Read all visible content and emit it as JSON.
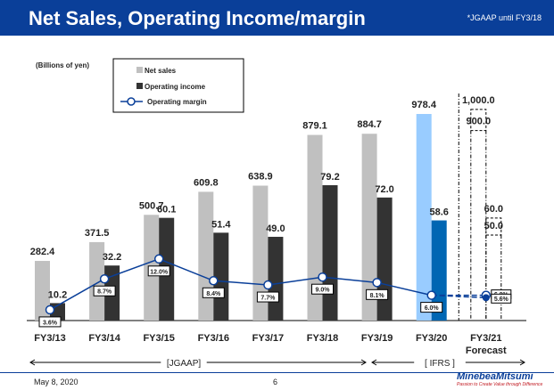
{
  "header": {
    "title": "Net Sales, Operating Income/margin",
    "note": "*JGAAP until FY3/18"
  },
  "footer": {
    "date": "May 8, 2020",
    "page": "6",
    "logo_name": "MinebeaMitsumi",
    "logo_tagline": "Passion to Create Value through Difference"
  },
  "colors": {
    "header_bg": "#0a3f99",
    "net_sales": "#c0c0c0",
    "operating_income": "#333333",
    "net_sales_fy20": "#99ccff",
    "operating_income_fy20": "#0066b3",
    "margin_line": "#0a3f99"
  },
  "chart_data": {
    "type": "bar",
    "unit_label": "(Billions of yen)",
    "categories": [
      "FY3/13",
      "FY3/14",
      "FY3/15",
      "FY3/16",
      "FY3/17",
      "FY3/18",
      "FY3/19",
      "FY3/20",
      "FY3/21"
    ],
    "forecast_label": "Forecast",
    "series": [
      {
        "name": "Net sales",
        "values": [
          282.4,
          371.5,
          500.7,
          609.8,
          638.9,
          879.1,
          884.7,
          978.4,
          null
        ],
        "labels": [
          "282.4",
          "371.5",
          "500.7",
          "609.8",
          "638.9",
          "879.1",
          "884.7",
          "978.4",
          null
        ]
      },
      {
        "name": "Operating income",
        "values": [
          10.2,
          32.2,
          60.1,
          51.4,
          49.0,
          79.2,
          72.0,
          58.6,
          null
        ],
        "labels": [
          "10.2",
          "32.2",
          "60.1",
          "51.4",
          "49.0",
          "79.2",
          "72.0",
          "58.6",
          null
        ]
      },
      {
        "name": "Operating margin",
        "values": [
          3.6,
          8.7,
          12.0,
          8.4,
          7.7,
          9.0,
          8.1,
          6.0,
          null
        ],
        "labels": [
          "3.6%",
          "8.7%",
          "12.0%",
          "8.4%",
          "7.7%",
          "9.0%",
          "8.1%",
          "6.0%",
          null
        ]
      }
    ],
    "forecast": {
      "net_sales_range": [
        900.0,
        1000.0
      ],
      "net_sales_labels": [
        "1,000.0",
        "900.0"
      ],
      "operating_income_range": [
        50.0,
        60.0
      ],
      "operating_income_labels": [
        "60.0",
        "50.0"
      ],
      "operating_margin_range": [
        5.6,
        6.0
      ],
      "operating_margin_labels": [
        "6.0%",
        "5.6%"
      ]
    },
    "legend": {
      "position": "top-left",
      "entries": [
        "Net sales",
        "Operating income",
        "Operating margin"
      ]
    },
    "brackets": [
      {
        "label": "[JGAAP]"
      },
      {
        "label": "[ IFRS ]"
      }
    ]
  }
}
